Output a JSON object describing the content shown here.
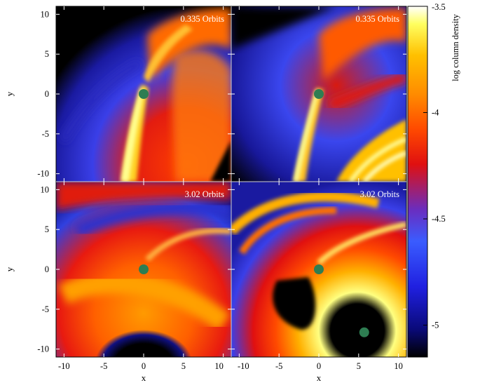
{
  "panels": [
    {
      "id": "top-left",
      "label": "0.335 Orbits",
      "planet": [
        0,
        0
      ],
      "companion": null
    },
    {
      "id": "top-right",
      "label": "0.335 Orbits",
      "planet": [
        0,
        0
      ],
      "companion": null
    },
    {
      "id": "bottom-left",
      "label": "3.02 Orbits",
      "planet": [
        0,
        0
      ],
      "companion": null
    },
    {
      "id": "bottom-right",
      "label": "3.02 Orbits",
      "planet": [
        0,
        0
      ],
      "companion": [
        5.7,
        -7.9
      ]
    }
  ],
  "axes": {
    "xlabel": "x",
    "ylabel": "y",
    "range": [
      -11,
      11
    ],
    "ticks": [
      "-10",
      "-5",
      "0",
      "5",
      "10"
    ],
    "tick_values": [
      -10,
      -5,
      0,
      5,
      10
    ]
  },
  "colorbar": {
    "label": "log column density",
    "range": [
      -5.15,
      -3.5
    ],
    "ticks": [
      "-3.5",
      "-4",
      "-4.5",
      "-5"
    ],
    "tick_values": [
      -3.5,
      -4,
      -4.5,
      -5
    ]
  },
  "colors": {
    "planet": "#2e7d52",
    "cmap": [
      "#000000",
      "#0a0a7a",
      "#2020e0",
      "#3a5cff",
      "#6a2dbf",
      "#e01010",
      "#ff4a00",
      "#ff8c00",
      "#ffc000",
      "#ffff60",
      "#ffffff"
    ]
  }
}
